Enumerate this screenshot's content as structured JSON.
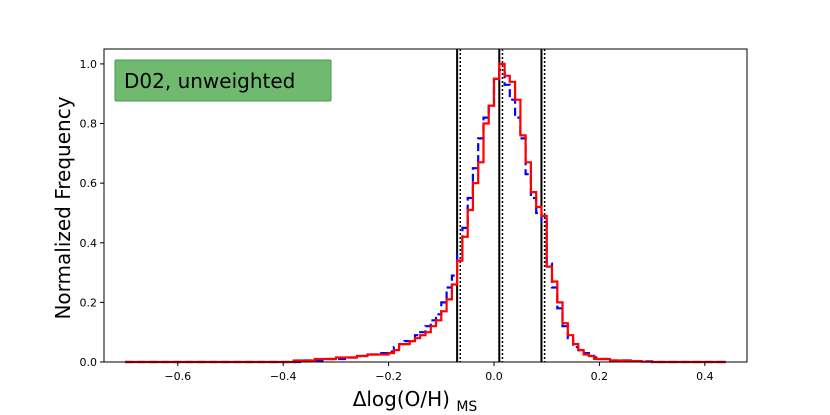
{
  "chart_data": {
    "type": "histogram",
    "title": "",
    "annotation": "D02, unweighted",
    "annotation_box_color": "#6fba6f",
    "xlabel": "Δlog(O/H)",
    "xlabel_subscript": "MS",
    "ylabel": "Normalized Frequency",
    "xlim": [
      -0.74,
      0.48
    ],
    "ylim": [
      0,
      1.05
    ],
    "xticks": [
      -0.6,
      -0.4,
      -0.2,
      0.0,
      0.2,
      0.4
    ],
    "xtick_labels": [
      "−0.6",
      "−0.4",
      "−0.2",
      "0.0",
      "0.2",
      "0.4"
    ],
    "yticks": [
      0.0,
      0.2,
      0.4,
      0.6,
      0.8,
      1.0
    ],
    "ytick_labels": [
      "0.0",
      "0.2",
      "0.4",
      "0.6",
      "0.8",
      "1.0"
    ],
    "grid": false,
    "vertical_lines": [
      {
        "x": -0.07,
        "style": "solid",
        "color": "#000000"
      },
      {
        "x": 0.01,
        "style": "solid",
        "color": "#000000"
      },
      {
        "x": 0.09,
        "style": "solid",
        "color": "#000000"
      },
      {
        "x": -0.064,
        "style": "dotted",
        "color": "#000000"
      },
      {
        "x": 0.016,
        "style": "dotted",
        "color": "#000000"
      },
      {
        "x": 0.096,
        "style": "dotted",
        "color": "#000000"
      }
    ],
    "series": [
      {
        "style": "dashed",
        "color": "#0000ff",
        "bin_edges": [
          -0.7,
          -0.65,
          -0.6,
          -0.55,
          -0.5,
          -0.45,
          -0.4,
          -0.38,
          -0.36,
          -0.34,
          -0.32,
          -0.3,
          -0.28,
          -0.26,
          -0.24,
          -0.22,
          -0.2,
          -0.19,
          -0.18,
          -0.17,
          -0.16,
          -0.15,
          -0.14,
          -0.13,
          -0.12,
          -0.11,
          -0.1,
          -0.09,
          -0.08,
          -0.07,
          -0.06,
          -0.05,
          -0.04,
          -0.03,
          -0.02,
          -0.01,
          0.0,
          0.01,
          0.02,
          0.03,
          0.04,
          0.05,
          0.06,
          0.07,
          0.08,
          0.09,
          0.1,
          0.11,
          0.12,
          0.13,
          0.14,
          0.15,
          0.16,
          0.17,
          0.18,
          0.19,
          0.2,
          0.22,
          0.24,
          0.26,
          0.28,
          0.3,
          0.35,
          0.4,
          0.44
        ],
        "values": [
          0.0,
          0.0,
          0.0,
          0.0,
          0.0,
          0.0,
          0.0,
          0.0,
          0.005,
          0.005,
          0.01,
          0.01,
          0.015,
          0.02,
          0.025,
          0.03,
          0.035,
          0.05,
          0.06,
          0.07,
          0.07,
          0.09,
          0.1,
          0.12,
          0.14,
          0.16,
          0.2,
          0.25,
          0.29,
          0.36,
          0.45,
          0.55,
          0.65,
          0.75,
          0.82,
          0.86,
          0.95,
          0.98,
          0.93,
          0.88,
          0.82,
          0.75,
          0.63,
          0.55,
          0.5,
          0.47,
          0.33,
          0.25,
          0.18,
          0.12,
          0.08,
          0.05,
          0.04,
          0.03,
          0.02,
          0.015,
          0.01,
          0.005,
          0.005,
          0.003,
          0.002,
          0.0,
          0.0,
          0.0
        ]
      },
      {
        "style": "solid",
        "color": "#ff0000",
        "bin_edges": [
          -0.7,
          -0.65,
          -0.6,
          -0.55,
          -0.5,
          -0.45,
          -0.4,
          -0.38,
          -0.36,
          -0.34,
          -0.32,
          -0.3,
          -0.28,
          -0.26,
          -0.24,
          -0.22,
          -0.2,
          -0.19,
          -0.18,
          -0.17,
          -0.16,
          -0.15,
          -0.14,
          -0.13,
          -0.12,
          -0.11,
          -0.1,
          -0.09,
          -0.08,
          -0.07,
          -0.06,
          -0.05,
          -0.04,
          -0.03,
          -0.02,
          -0.01,
          0.0,
          0.01,
          0.02,
          0.03,
          0.04,
          0.05,
          0.06,
          0.07,
          0.08,
          0.09,
          0.1,
          0.11,
          0.12,
          0.13,
          0.14,
          0.15,
          0.16,
          0.17,
          0.18,
          0.19,
          0.2,
          0.22,
          0.24,
          0.26,
          0.28,
          0.3,
          0.35,
          0.4,
          0.44
        ],
        "values": [
          0.0,
          0.0,
          0.0,
          0.0,
          0.0,
          0.0,
          0.0,
          0.005,
          0.005,
          0.01,
          0.01,
          0.015,
          0.015,
          0.02,
          0.025,
          0.025,
          0.03,
          0.04,
          0.06,
          0.06,
          0.07,
          0.08,
          0.09,
          0.1,
          0.12,
          0.14,
          0.17,
          0.21,
          0.26,
          0.34,
          0.42,
          0.51,
          0.6,
          0.67,
          0.8,
          0.86,
          0.95,
          1.0,
          0.96,
          0.94,
          0.88,
          0.76,
          0.67,
          0.57,
          0.52,
          0.49,
          0.32,
          0.27,
          0.2,
          0.13,
          0.09,
          0.06,
          0.04,
          0.025,
          0.02,
          0.01,
          0.01,
          0.005,
          0.005,
          0.003,
          0.001,
          0.0,
          0.0,
          0.0
        ]
      }
    ]
  }
}
